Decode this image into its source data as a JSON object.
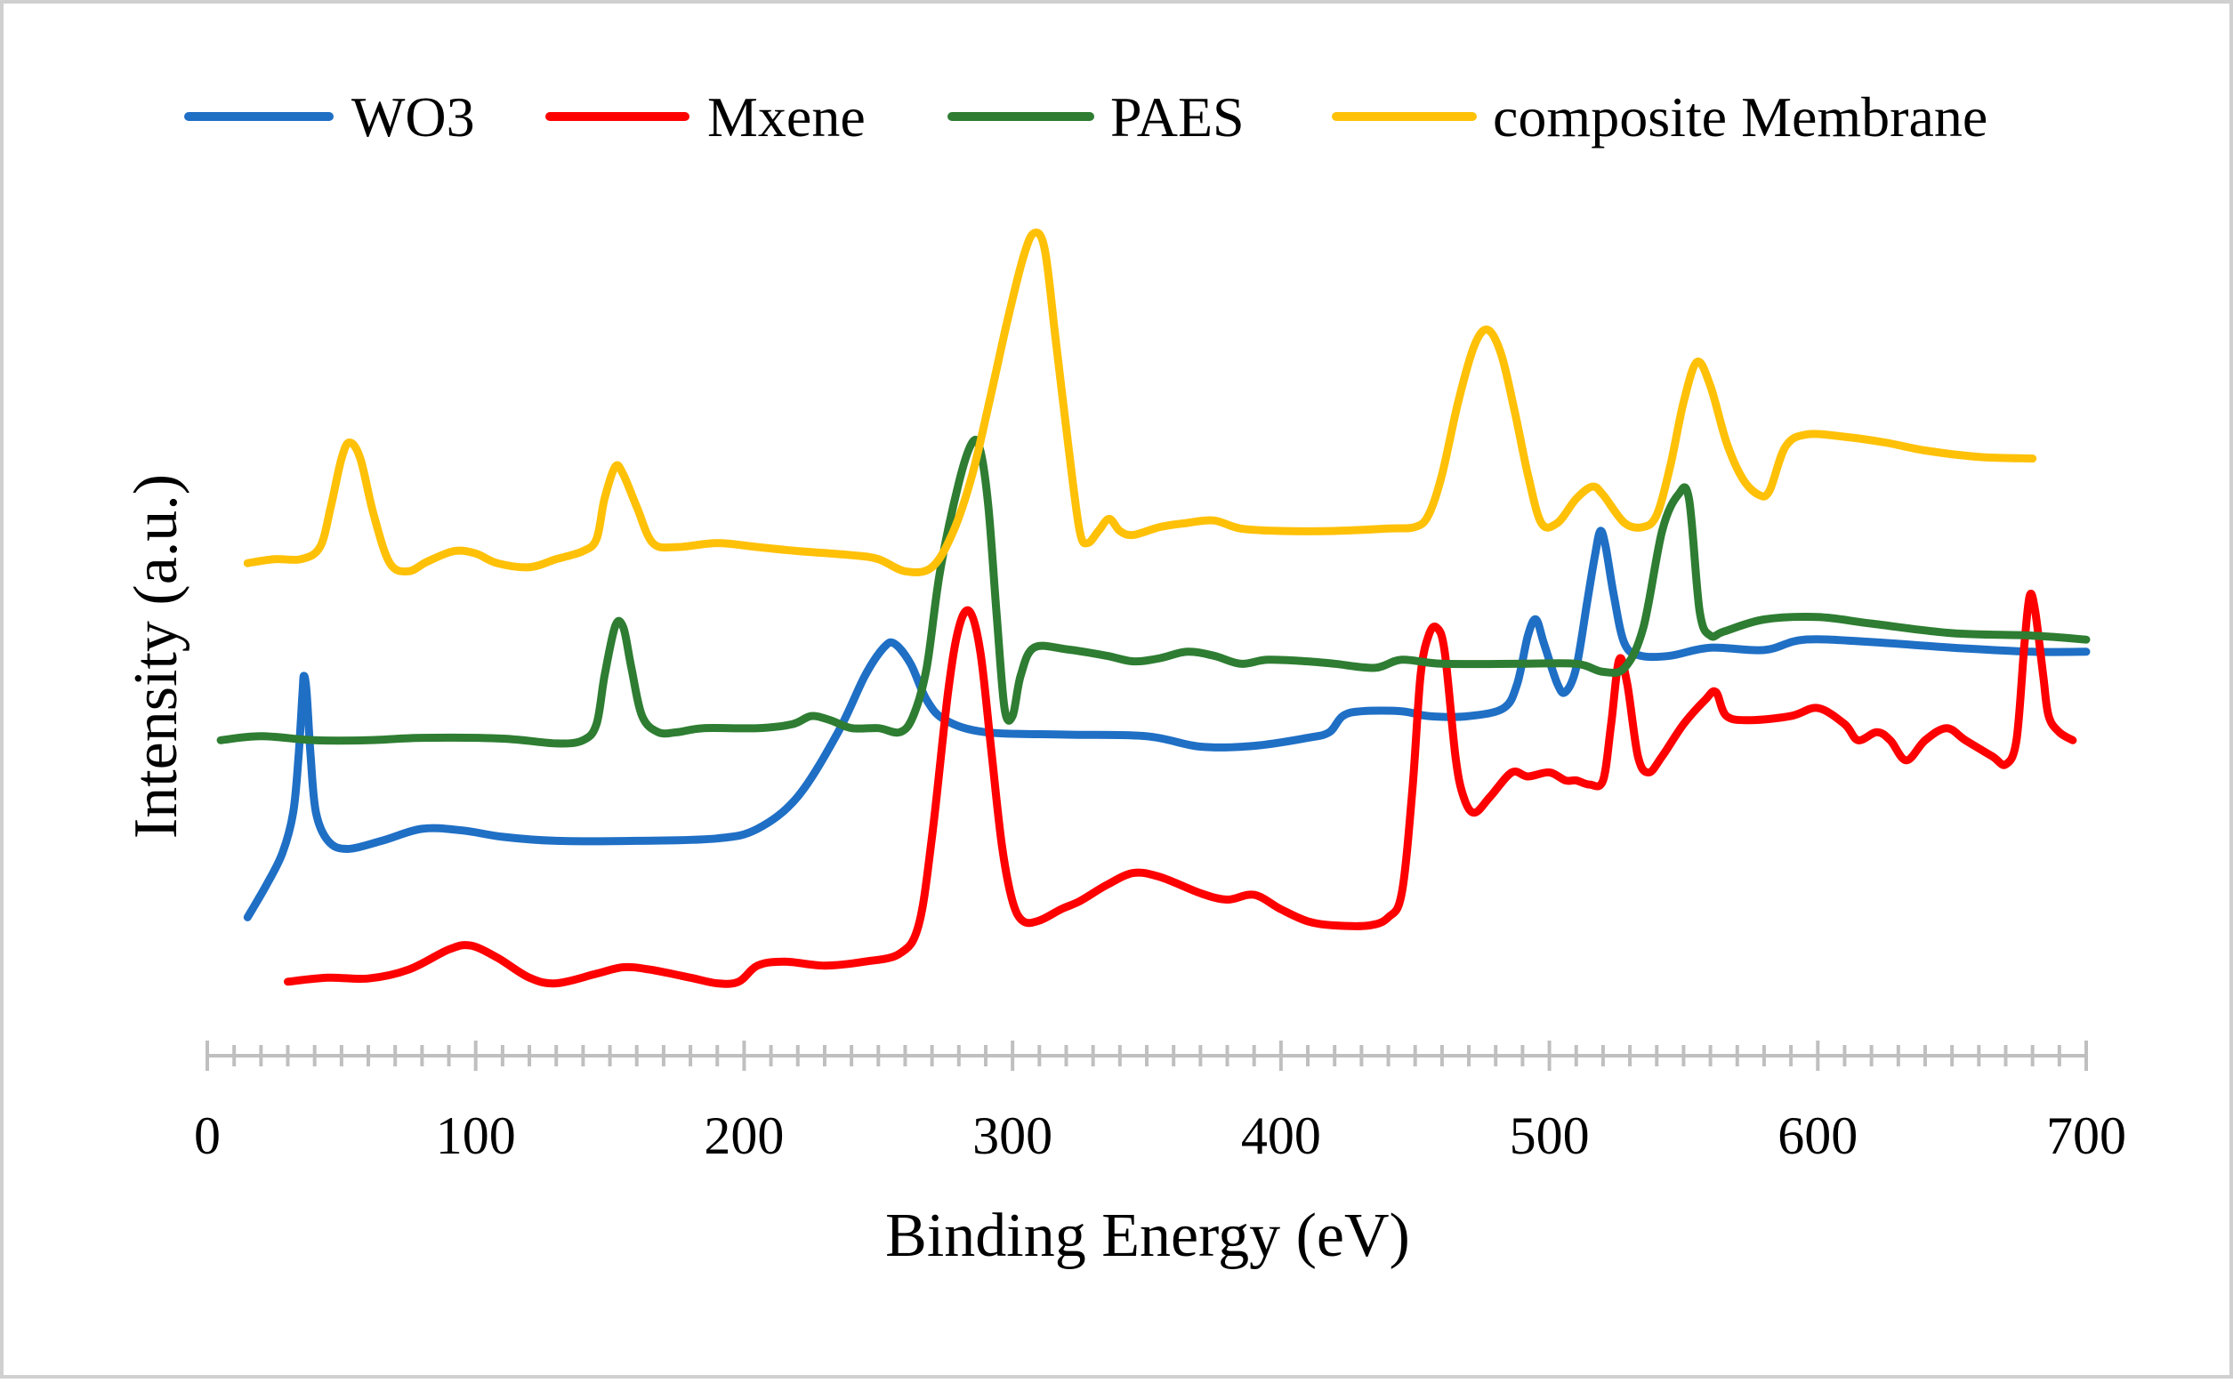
{
  "chart_data": {
    "type": "line",
    "title": "",
    "xlabel": "Binding Energy (eV)",
    "ylabel": "Intensity (a.u.)",
    "xlim": [
      0,
      700
    ],
    "ylim": [
      0,
      100
    ],
    "x_ticks": [
      0,
      100,
      200,
      300,
      400,
      500,
      600,
      700
    ],
    "x_tick_labels": [
      "0",
      "100",
      "200",
      "300",
      "400",
      "500",
      "600",
      "700"
    ],
    "grid": false,
    "legend": "top",
    "y_tick_labels_shown": false,
    "series": [
      {
        "name": "WO3",
        "color": "#1F6FC5",
        "points": [
          [
            15,
            12
          ],
          [
            22,
            16
          ],
          [
            28,
            20
          ],
          [
            32,
            25
          ],
          [
            34,
            32
          ],
          [
            35.5,
            40
          ],
          [
            36,
            42
          ],
          [
            37,
            40
          ],
          [
            38.5,
            32
          ],
          [
            40.5,
            25
          ],
          [
            45,
            21.5
          ],
          [
            52,
            20.5
          ],
          [
            65,
            21.5
          ],
          [
            80,
            23
          ],
          [
            95,
            22.8
          ],
          [
            110,
            22
          ],
          [
            130,
            21.5
          ],
          [
            160,
            21.5
          ],
          [
            190,
            21.8
          ],
          [
            205,
            23
          ],
          [
            220,
            27
          ],
          [
            235,
            35
          ],
          [
            245,
            42
          ],
          [
            252,
            45.5
          ],
          [
            256,
            46
          ],
          [
            262,
            43.5
          ],
          [
            268,
            39
          ],
          [
            275,
            36.5
          ],
          [
            290,
            35
          ],
          [
            320,
            34.7
          ],
          [
            350,
            34.5
          ],
          [
            370,
            33.2
          ],
          [
            390,
            33.3
          ],
          [
            410,
            34.3
          ],
          [
            418,
            35
          ],
          [
            423,
            37
          ],
          [
            430,
            37.6
          ],
          [
            445,
            37.6
          ],
          [
            455,
            37
          ],
          [
            470,
            37
          ],
          [
            483,
            38
          ],
          [
            488,
            41
          ],
          [
            492,
            47
          ],
          [
            495,
            49
          ],
          [
            498,
            46
          ],
          [
            503,
            41
          ],
          [
            506,
            40
          ],
          [
            510,
            43
          ],
          [
            514,
            51
          ],
          [
            517,
            57
          ],
          [
            519,
            60
          ],
          [
            521,
            58
          ],
          [
            524,
            52
          ],
          [
            528,
            46
          ],
          [
            534,
            44.5
          ],
          [
            545,
            44.5
          ],
          [
            560,
            45.5
          ],
          [
            580,
            45.2
          ],
          [
            595,
            46.5
          ],
          [
            620,
            46.2
          ],
          [
            650,
            45.5
          ],
          [
            680,
            45
          ],
          [
            700,
            45
          ]
        ]
      },
      {
        "name": "Mxene",
        "color": "#FF0000",
        "points": [
          [
            30,
            4
          ],
          [
            45,
            4.5
          ],
          [
            60,
            4.4
          ],
          [
            75,
            5.5
          ],
          [
            90,
            8
          ],
          [
            98,
            8.5
          ],
          [
            108,
            7
          ],
          [
            120,
            4.5
          ],
          [
            130,
            3.8
          ],
          [
            145,
            5
          ],
          [
            155,
            5.8
          ],
          [
            165,
            5.5
          ],
          [
            180,
            4.5
          ],
          [
            190,
            3.8
          ],
          [
            198,
            4
          ],
          [
            205,
            6
          ],
          [
            215,
            6.5
          ],
          [
            230,
            6
          ],
          [
            245,
            6.5
          ],
          [
            258,
            7.5
          ],
          [
            265,
            11
          ],
          [
            270,
            22
          ],
          [
            276,
            40
          ],
          [
            280,
            48
          ],
          [
            284,
            50
          ],
          [
            288,
            45
          ],
          [
            292,
            33
          ],
          [
            296,
            21
          ],
          [
            300,
            14
          ],
          [
            304,
            11.5
          ],
          [
            310,
            11.6
          ],
          [
            318,
            13
          ],
          [
            325,
            14
          ],
          [
            335,
            16
          ],
          [
            345,
            17.5
          ],
          [
            355,
            17
          ],
          [
            370,
            15
          ],
          [
            380,
            14.2
          ],
          [
            390,
            14.8
          ],
          [
            400,
            13
          ],
          [
            410,
            11.5
          ],
          [
            420,
            11
          ],
          [
            433,
            11
          ],
          [
            440,
            12
          ],
          [
            445,
            15
          ],
          [
            449,
            28
          ],
          [
            452,
            42
          ],
          [
            455,
            47
          ],
          [
            458,
            48
          ],
          [
            461,
            45
          ],
          [
            465,
            32
          ],
          [
            468,
            27
          ],
          [
            472,
            25
          ],
          [
            478,
            27
          ],
          [
            486,
            30
          ],
          [
            492,
            29.5
          ],
          [
            500,
            30
          ],
          [
            506,
            29
          ],
          [
            510,
            29
          ],
          [
            515,
            28.5
          ],
          [
            520,
            29
          ],
          [
            523,
            36
          ],
          [
            526,
            44
          ],
          [
            529,
            41
          ],
          [
            533,
            32
          ],
          [
            537,
            30
          ],
          [
            542,
            32
          ],
          [
            550,
            36
          ],
          [
            558,
            39
          ],
          [
            562,
            40
          ],
          [
            566,
            37
          ],
          [
            575,
            36.5
          ],
          [
            590,
            37
          ],
          [
            600,
            38
          ],
          [
            610,
            36
          ],
          [
            615,
            34
          ],
          [
            622,
            35
          ],
          [
            627,
            34
          ],
          [
            633,
            31.5
          ],
          [
            640,
            34
          ],
          [
            648,
            35.5
          ],
          [
            655,
            34
          ],
          [
            665,
            32
          ],
          [
            670,
            31
          ],
          [
            674,
            34
          ],
          [
            677,
            46
          ],
          [
            679,
            52
          ],
          [
            681,
            50
          ],
          [
            684,
            42
          ],
          [
            686,
            37
          ],
          [
            690,
            35
          ],
          [
            695,
            34
          ]
        ]
      },
      {
        "name": "PAES",
        "color": "#2E7D32",
        "points": [
          [
            5,
            34
          ],
          [
            20,
            34.5
          ],
          [
            40,
            34
          ],
          [
            60,
            34
          ],
          [
            80,
            34.3
          ],
          [
            110,
            34.2
          ],
          [
            130,
            33.6
          ],
          [
            140,
            34
          ],
          [
            145,
            36
          ],
          [
            148,
            42
          ],
          [
            152,
            48.2
          ],
          [
            155,
            48
          ],
          [
            158,
            43
          ],
          [
            162,
            37
          ],
          [
            168,
            35
          ],
          [
            175,
            35
          ],
          [
            185,
            35.5
          ],
          [
            205,
            35.5
          ],
          [
            218,
            36
          ],
          [
            225,
            37
          ],
          [
            232,
            36.5
          ],
          [
            240,
            35.5
          ],
          [
            250,
            35.5
          ],
          [
            258,
            35
          ],
          [
            263,
            37
          ],
          [
            268,
            43
          ],
          [
            273,
            55
          ],
          [
            280,
            66
          ],
          [
            285,
            71
          ],
          [
            288,
            70
          ],
          [
            291,
            63
          ],
          [
            294,
            50
          ],
          [
            297,
            38
          ],
          [
            300,
            37
          ],
          [
            303,
            42
          ],
          [
            308,
            45.5
          ],
          [
            320,
            45.3
          ],
          [
            335,
            44.5
          ],
          [
            345,
            43.8
          ],
          [
            355,
            44.2
          ],
          [
            365,
            45
          ],
          [
            375,
            44.5
          ],
          [
            385,
            43.5
          ],
          [
            395,
            44
          ],
          [
            410,
            43.8
          ],
          [
            420,
            43.5
          ],
          [
            435,
            43
          ],
          [
            445,
            44
          ],
          [
            460,
            43.5
          ],
          [
            490,
            43.5
          ],
          [
            510,
            43.5
          ],
          [
            520,
            42.5
          ],
          [
            528,
            43
          ],
          [
            535,
            48
          ],
          [
            542,
            60
          ],
          [
            548,
            64.5
          ],
          [
            552,
            64
          ],
          [
            556,
            50
          ],
          [
            560,
            47
          ],
          [
            565,
            47.5
          ],
          [
            580,
            49
          ],
          [
            600,
            49.3
          ],
          [
            620,
            48.5
          ],
          [
            650,
            47.3
          ],
          [
            680,
            47
          ],
          [
            700,
            46.5
          ]
        ]
      },
      {
        "name": "composite Membrane",
        "color": "#FFC107",
        "points": [
          [
            15,
            56
          ],
          [
            25,
            56.5
          ],
          [
            35,
            56.5
          ],
          [
            42,
            58
          ],
          [
            46,
            63
          ],
          [
            50,
            69
          ],
          [
            53,
            71
          ],
          [
            57,
            69
          ],
          [
            62,
            62
          ],
          [
            68,
            56
          ],
          [
            75,
            55
          ],
          [
            82,
            56.2
          ],
          [
            92,
            57.5
          ],
          [
            100,
            57.2
          ],
          [
            108,
            56
          ],
          [
            120,
            55.5
          ],
          [
            130,
            56.5
          ],
          [
            140,
            57.5
          ],
          [
            145,
            59
          ],
          [
            148,
            64
          ],
          [
            152,
            68
          ],
          [
            155,
            67
          ],
          [
            160,
            63
          ],
          [
            166,
            58.5
          ],
          [
            175,
            58
          ],
          [
            190,
            58.5
          ],
          [
            205,
            58
          ],
          [
            220,
            57.5
          ],
          [
            240,
            57
          ],
          [
            250,
            56.5
          ],
          [
            260,
            55
          ],
          [
            270,
            55.5
          ],
          [
            278,
            60
          ],
          [
            285,
            67
          ],
          [
            292,
            77
          ],
          [
            298,
            86
          ],
          [
            304,
            94
          ],
          [
            308,
            97
          ],
          [
            312,
            95
          ],
          [
            316,
            84
          ],
          [
            321,
            70
          ],
          [
            325,
            60
          ],
          [
            328,
            58.5
          ],
          [
            332,
            60
          ],
          [
            336,
            61.5
          ],
          [
            340,
            60
          ],
          [
            345,
            59.5
          ],
          [
            355,
            60.5
          ],
          [
            365,
            61
          ],
          [
            375,
            61.3
          ],
          [
            385,
            60.3
          ],
          [
            400,
            60
          ],
          [
            420,
            60
          ],
          [
            440,
            60.3
          ],
          [
            450,
            60.5
          ],
          [
            455,
            62
          ],
          [
            460,
            67
          ],
          [
            466,
            76
          ],
          [
            472,
            83
          ],
          [
            477,
            85
          ],
          [
            482,
            82
          ],
          [
            487,
            75
          ],
          [
            492,
            67
          ],
          [
            497,
            61
          ],
          [
            503,
            61
          ],
          [
            510,
            64
          ],
          [
            516,
            65.5
          ],
          [
            520,
            64.5
          ],
          [
            528,
            61
          ],
          [
            535,
            60.5
          ],
          [
            540,
            62
          ],
          [
            545,
            68
          ],
          [
            550,
            76
          ],
          [
            555,
            81
          ],
          [
            560,
            78
          ],
          [
            566,
            71
          ],
          [
            572,
            66.5
          ],
          [
            578,
            64.5
          ],
          [
            582,
            65
          ],
          [
            588,
            70.5
          ],
          [
            596,
            72
          ],
          [
            610,
            71.7
          ],
          [
            625,
            71
          ],
          [
            640,
            70
          ],
          [
            660,
            69.2
          ],
          [
            680,
            69
          ]
        ]
      }
    ]
  }
}
